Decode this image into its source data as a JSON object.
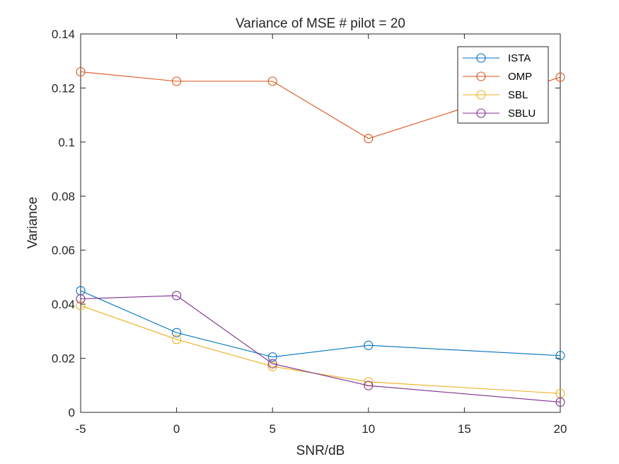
{
  "chart_data": {
    "type": "line",
    "title": "Variance of MSE # pilot = 20",
    "xlabel": "SNR/dB",
    "ylabel": "Variance",
    "xlim": [
      -5,
      20
    ],
    "ylim": [
      0,
      0.14
    ],
    "xticks": [
      -5,
      0,
      5,
      10,
      15,
      20
    ],
    "yticks": [
      0,
      0.02,
      0.04,
      0.06,
      0.08,
      0.1,
      0.12,
      0.14
    ],
    "xtick_labels": [
      "-5",
      "0",
      "5",
      "10",
      "15",
      "20"
    ],
    "ytick_labels": [
      "0",
      "0.02",
      "0.04",
      "0.06",
      "0.08",
      "0.1",
      "0.12",
      "0.14"
    ],
    "grid": false,
    "legend_position": "top-right",
    "marker": "circle",
    "x": [
      -5,
      0,
      5,
      10,
      20
    ],
    "series": [
      {
        "name": "ISTA",
        "color": "#0072BD",
        "values": [
          0.045,
          0.0295,
          0.0205,
          0.0248,
          0.021
        ]
      },
      {
        "name": "OMP",
        "color": "#D95319",
        "values": [
          0.126,
          0.1225,
          0.1225,
          0.1013,
          0.124
        ]
      },
      {
        "name": "SBL",
        "color": "#EDB120",
        "values": [
          0.0395,
          0.027,
          0.017,
          0.0113,
          0.007
        ]
      },
      {
        "name": "SBLU",
        "color": "#7E2F8E",
        "values": [
          0.042,
          0.0432,
          0.018,
          0.0099,
          0.0038
        ]
      }
    ]
  }
}
